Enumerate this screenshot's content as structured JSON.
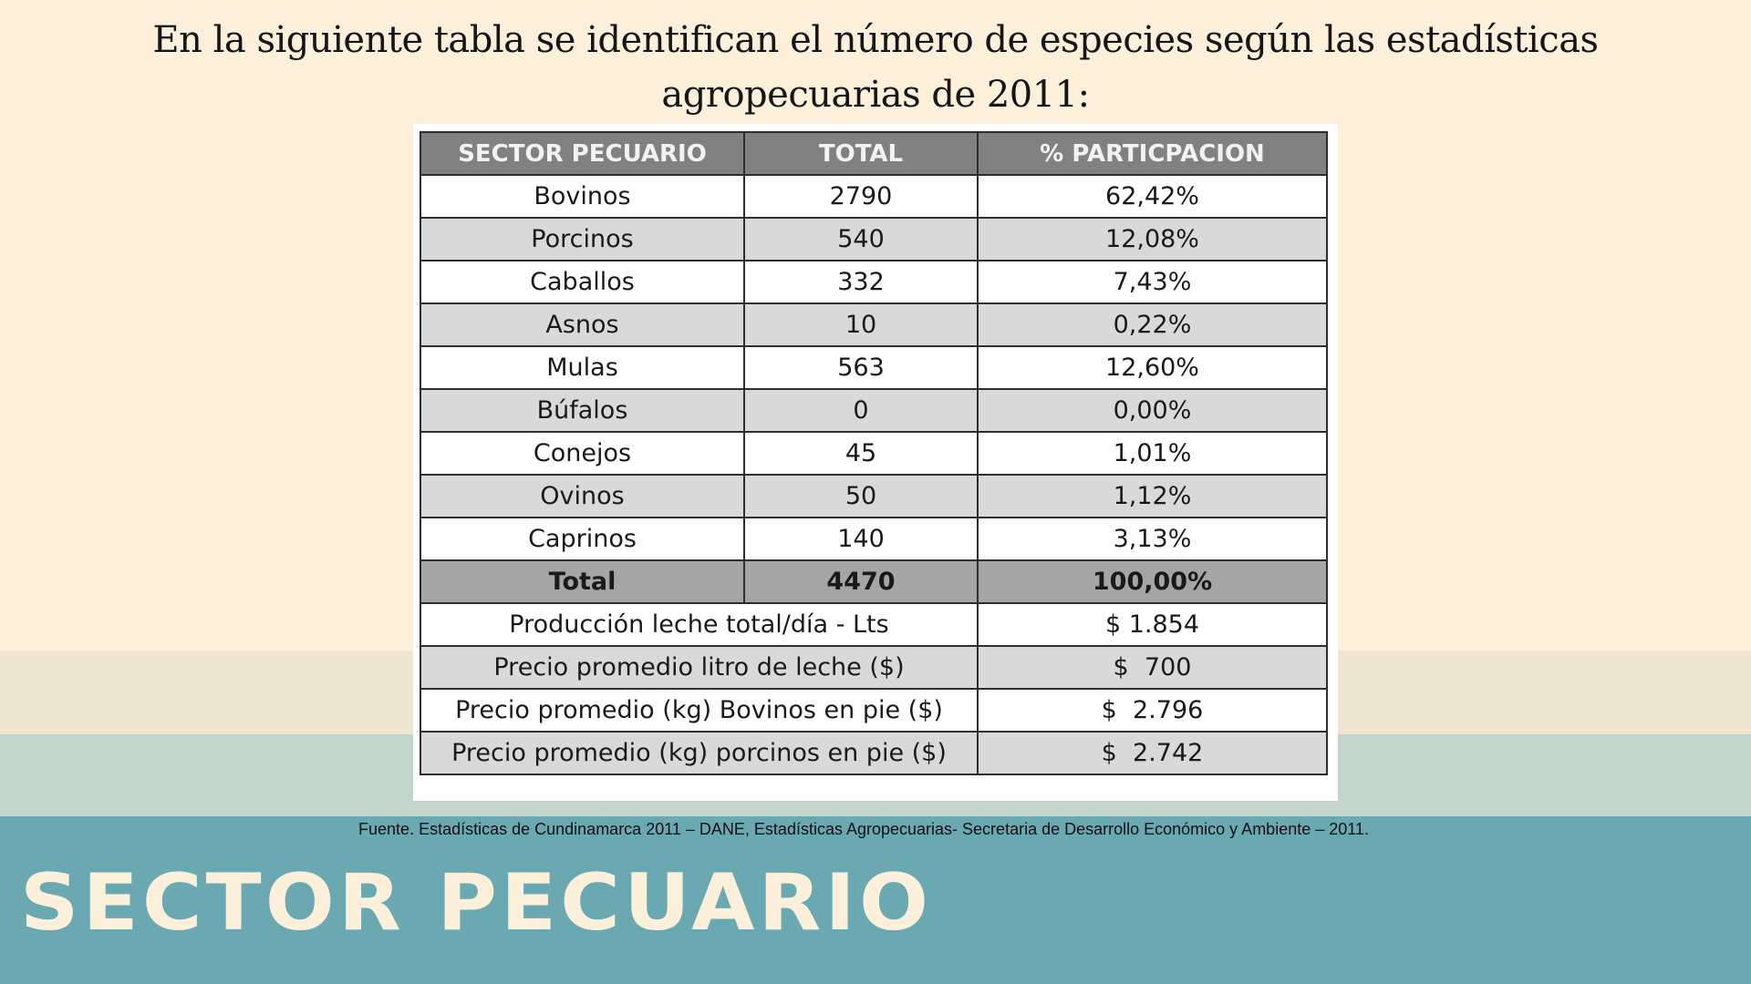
{
  "intro_text": "En la siguiente tabla se identifican el número de especies según las estadísticas agropecuarias de 2011:",
  "table": {
    "headers": [
      "SECTOR PECUARIO",
      "TOTAL",
      "% PARTICPACION"
    ],
    "rows": [
      [
        "Bovinos",
        "2790",
        "62,42%"
      ],
      [
        "Porcinos",
        "540",
        "12,08%"
      ],
      [
        "Caballos",
        "332",
        "7,43%"
      ],
      [
        "Asnos",
        "10",
        "0,22%"
      ],
      [
        "Mulas",
        "563",
        "12,60%"
      ],
      [
        "Búfalos",
        "0",
        "0,00%"
      ],
      [
        "Conejos",
        "45",
        "1,01%"
      ],
      [
        "Ovinos",
        "50",
        "1,12%"
      ],
      [
        "Caprinos",
        "140",
        "3,13%"
      ]
    ],
    "total_row": [
      "Total",
      "4470",
      "100,00%"
    ],
    "extra_rows": [
      [
        "Producción leche total/día - Lts",
        "$ 1.854"
      ],
      [
        "Precio promedio litro de leche ($)",
        "$  700"
      ],
      [
        "Precio promedio (kg) Bovinos en pie ($)",
        "$  2.796"
      ],
      [
        "Precio promedio (kg) porcinos en pie ($)",
        "$  2.742"
      ]
    ]
  },
  "source_text": "Fuente. Estadísticas de Cundinamarca 2011 – DANE, Estadísticas Agropecuarias- Secretaria de Desarrollo Económico y Ambiente – 2011.",
  "section_title": "SECTOR PECUARIO",
  "colors": {
    "background": "#fdf0da",
    "band_light": "#efe6d2",
    "band_sage": "#c3d4ca",
    "band_teal": "#6aa9b2",
    "header_gray": "#818181",
    "row_alt_gray": "#d9d9d9",
    "total_gray": "#a5a5a5"
  }
}
